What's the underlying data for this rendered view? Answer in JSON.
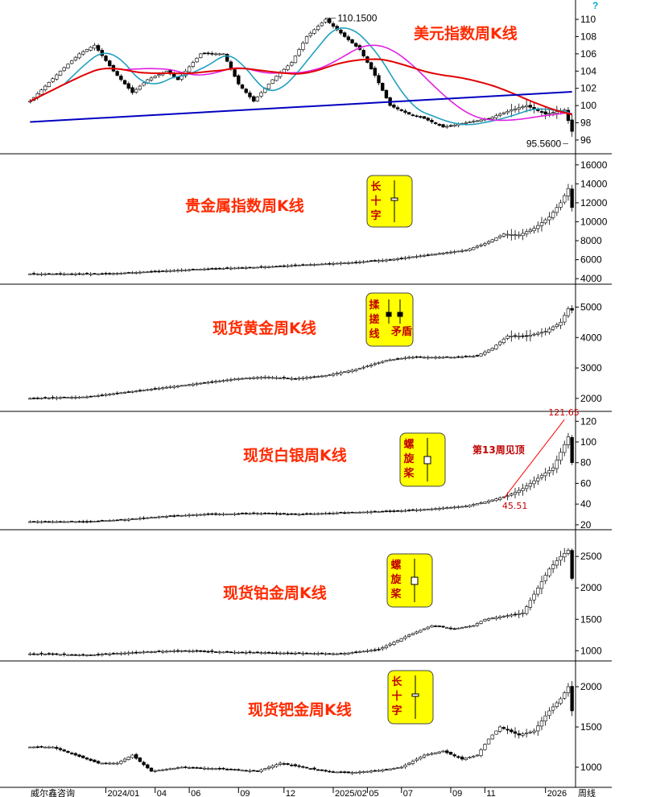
{
  "header": {
    "help_mark": "?"
  },
  "x_axis": {
    "source": "威尔鑫咨询",
    "ticks": [
      "2024/01",
      "04",
      "06",
      "09",
      "12",
      "2025/02",
      "05",
      "07",
      "09",
      "11",
      "2026"
    ],
    "unit": "周线"
  },
  "chart_data": [
    {
      "type": "candlestick",
      "title": "美元指数周K线",
      "y_ticks": [
        96,
        98,
        100,
        102,
        104,
        106,
        108,
        110
      ],
      "ylim": [
        94.5,
        111.5
      ],
      "high_label": "110.1500",
      "low_label": "95.5600",
      "moving_averages": [
        {
          "color": "#22a0c0",
          "shape": "medium-term"
        },
        {
          "color": "#e020e0",
          "shape": "long-term"
        },
        {
          "color": "#e00000",
          "shape": "very-long-term"
        },
        {
          "color": "#0000c0",
          "shape": "trend"
        }
      ],
      "close_path": [
        [
          0,
          100.5
        ],
        [
          8,
          104
        ],
        [
          13,
          106
        ],
        [
          17,
          107
        ],
        [
          22,
          104
        ],
        [
          27,
          101.5
        ],
        [
          31,
          103
        ],
        [
          36,
          104
        ],
        [
          39,
          103
        ],
        [
          45,
          106
        ],
        [
          51,
          106
        ],
        [
          55,
          102.5
        ],
        [
          59,
          100.5
        ],
        [
          64,
          103
        ],
        [
          69,
          105
        ],
        [
          73,
          108
        ],
        [
          78,
          110
        ],
        [
          83,
          108
        ],
        [
          87,
          106.5
        ],
        [
          91,
          103.5
        ],
        [
          95,
          100
        ],
        [
          100,
          99
        ],
        [
          104,
          98.5
        ],
        [
          109,
          97.5
        ],
        [
          115,
          98
        ],
        [
          121,
          98.5
        ],
        [
          127,
          99.5
        ],
        [
          131,
          100
        ],
        [
          136,
          99
        ],
        [
          141,
          99.5
        ],
        [
          143,
          97
        ]
      ]
    },
    {
      "type": "candlestick",
      "title": "贵金属指数周K线",
      "y_ticks": [
        4000,
        6000,
        8000,
        10000,
        12000,
        14000,
        16000
      ],
      "ylim": [
        3500,
        17000
      ],
      "badge": {
        "lines": [
          "长",
          "十",
          "字"
        ]
      },
      "close_path": [
        [
          0,
          4500
        ],
        [
          20,
          4500
        ],
        [
          30,
          4700
        ],
        [
          45,
          5000
        ],
        [
          60,
          5200
        ],
        [
          70,
          5400
        ],
        [
          85,
          5700
        ],
        [
          95,
          6000
        ],
        [
          105,
          6500
        ],
        [
          115,
          7000
        ],
        [
          120,
          7700
        ],
        [
          125,
          8700
        ],
        [
          129,
          8600
        ],
        [
          133,
          9300
        ],
        [
          137,
          10500
        ],
        [
          140,
          12000
        ],
        [
          142,
          13500
        ],
        [
          143,
          11500
        ]
      ]
    },
    {
      "type": "candlestick",
      "title": "现货黄金周K线",
      "y_ticks": [
        2000,
        3000,
        4000,
        5000
      ],
      "ylim": [
        1600,
        5700
      ],
      "badge": {
        "left": [
          "揉",
          "搓",
          "线"
        ],
        "right": "矛盾"
      },
      "close_path": [
        [
          0,
          2000
        ],
        [
          15,
          2050
        ],
        [
          25,
          2200
        ],
        [
          35,
          2350
        ],
        [
          45,
          2500
        ],
        [
          55,
          2650
        ],
        [
          62,
          2700
        ],
        [
          70,
          2650
        ],
        [
          78,
          2750
        ],
        [
          86,
          2950
        ],
        [
          94,
          3250
        ],
        [
          100,
          3350
        ],
        [
          106,
          3350
        ],
        [
          112,
          3350
        ],
        [
          118,
          3400
        ],
        [
          122,
          3650
        ],
        [
          126,
          4050
        ],
        [
          131,
          4050
        ],
        [
          136,
          4200
        ],
        [
          140,
          4500
        ],
        [
          142,
          4950
        ],
        [
          143,
          4900
        ]
      ]
    },
    {
      "type": "candlestick",
      "title": "现货白银周K线",
      "y_ticks": [
        20,
        40,
        60,
        80,
        100,
        120
      ],
      "ylim": [
        16,
        128
      ],
      "badge": {
        "lines": [
          "螺",
          "旋",
          "桨"
        ]
      },
      "annotation": "第13周见顶",
      "low_label": "45.51",
      "high_label": "121.65",
      "close_path": [
        [
          0,
          23
        ],
        [
          15,
          23
        ],
        [
          25,
          25
        ],
        [
          35,
          28
        ],
        [
          45,
          30
        ],
        [
          60,
          31
        ],
        [
          70,
          30
        ],
        [
          85,
          32
        ],
        [
          95,
          33
        ],
        [
          105,
          35
        ],
        [
          115,
          38
        ],
        [
          120,
          42
        ],
        [
          126,
          48
        ],
        [
          130,
          55
        ],
        [
          134,
          65
        ],
        [
          138,
          75
        ],
        [
          140,
          90
        ],
        [
          142,
          105
        ],
        [
          143,
          80
        ]
      ]
    },
    {
      "type": "candlestick",
      "title": "现货铂金周K线",
      "y_ticks": [
        1000,
        1500,
        2000,
        2500
      ],
      "ylim": [
        850,
        2900
      ],
      "badge": {
        "lines": [
          "螺",
          "旋",
          "桨"
        ]
      },
      "close_path": [
        [
          0,
          950
        ],
        [
          15,
          930
        ],
        [
          30,
          980
        ],
        [
          40,
          1000
        ],
        [
          50,
          980
        ],
        [
          60,
          970
        ],
        [
          70,
          960
        ],
        [
          82,
          950
        ],
        [
          92,
          1020
        ],
        [
          100,
          1250
        ],
        [
          106,
          1400
        ],
        [
          112,
          1350
        ],
        [
          117,
          1400
        ],
        [
          120,
          1500
        ],
        [
          125,
          1550
        ],
        [
          130,
          1600
        ],
        [
          134,
          2000
        ],
        [
          137,
          2300
        ],
        [
          140,
          2500
        ],
        [
          142,
          2600
        ],
        [
          143,
          2150
        ]
      ]
    },
    {
      "type": "candlestick",
      "title": "现货钯金周K线",
      "y_ticks": [
        1000,
        1500,
        2000
      ],
      "ylim": [
        780,
        2300
      ],
      "badge": {
        "lines": [
          "长",
          "十",
          "字"
        ]
      },
      "close_path": [
        [
          0,
          1250
        ],
        [
          6,
          1250
        ],
        [
          12,
          1150
        ],
        [
          18,
          1050
        ],
        [
          23,
          1050
        ],
        [
          27,
          1150
        ],
        [
          32,
          950
        ],
        [
          40,
          1000
        ],
        [
          50,
          980
        ],
        [
          60,
          950
        ],
        [
          66,
          1050
        ],
        [
          72,
          1000
        ],
        [
          78,
          950
        ],
        [
          84,
          930
        ],
        [
          92,
          960
        ],
        [
          98,
          1000
        ],
        [
          104,
          1150
        ],
        [
          109,
          1200
        ],
        [
          114,
          1100
        ],
        [
          118,
          1150
        ],
        [
          121,
          1350
        ],
        [
          124,
          1500
        ],
        [
          129,
          1400
        ],
        [
          133,
          1450
        ],
        [
          137,
          1700
        ],
        [
          140,
          1850
        ],
        [
          142,
          2000
        ],
        [
          143,
          1700
        ]
      ]
    }
  ]
}
